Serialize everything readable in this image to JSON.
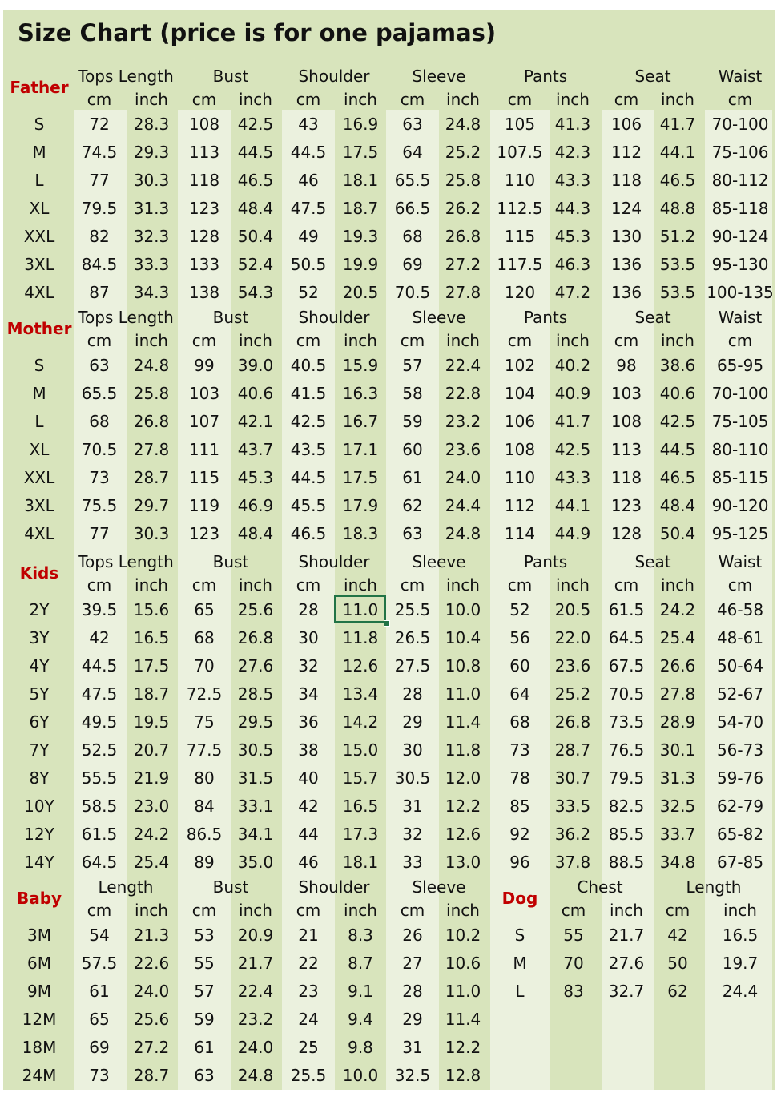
{
  "title": "Size Chart (price is for one pajamas)",
  "colors": {
    "background": "#d8e4bc",
    "stripe": "#ebf1de",
    "section_label": "#c00000",
    "selection": "#217346"
  },
  "sections": [
    {
      "label": "Father",
      "groups": [
        "Tops Length",
        "Bust",
        "Shoulder",
        "Sleeve",
        "Pants",
        "Seat",
        "Waist"
      ],
      "units": [
        "cm",
        "inch",
        "cm",
        "inch",
        "cm",
        "inch",
        "cm",
        "inch",
        "cm",
        "inch",
        "cm",
        "inch",
        "cm"
      ],
      "rows": [
        [
          "S",
          "72",
          "28.3",
          "108",
          "42.5",
          "43",
          "16.9",
          "63",
          "24.8",
          "105",
          "41.3",
          "106",
          "41.7",
          "70-100"
        ],
        [
          "M",
          "74.5",
          "29.3",
          "113",
          "44.5",
          "44.5",
          "17.5",
          "64",
          "25.2",
          "107.5",
          "42.3",
          "112",
          "44.1",
          "75-106"
        ],
        [
          "L",
          "77",
          "30.3",
          "118",
          "46.5",
          "46",
          "18.1",
          "65.5",
          "25.8",
          "110",
          "43.3",
          "118",
          "46.5",
          "80-112"
        ],
        [
          "XL",
          "79.5",
          "31.3",
          "123",
          "48.4",
          "47.5",
          "18.7",
          "66.5",
          "26.2",
          "112.5",
          "44.3",
          "124",
          "48.8",
          "85-118"
        ],
        [
          "XXL",
          "82",
          "32.3",
          "128",
          "50.4",
          "49",
          "19.3",
          "68",
          "26.8",
          "115",
          "45.3",
          "130",
          "51.2",
          "90-124"
        ],
        [
          "3XL",
          "84.5",
          "33.3",
          "133",
          "52.4",
          "50.5",
          "19.9",
          "69",
          "27.2",
          "117.5",
          "46.3",
          "136",
          "53.5",
          "95-130"
        ],
        [
          "4XL",
          "87",
          "34.3",
          "138",
          "54.3",
          "52",
          "20.5",
          "70.5",
          "27.8",
          "120",
          "47.2",
          "136",
          "53.5",
          "100-135"
        ]
      ]
    },
    {
      "label": "Mother",
      "groups": [
        "Tops Length",
        "Bust",
        "Shoulder",
        "Sleeve",
        "Pants",
        "Seat",
        "Waist"
      ],
      "units": [
        "cm",
        "inch",
        "cm",
        "inch",
        "cm",
        "inch",
        "cm",
        "inch",
        "cm",
        "inch",
        "cm",
        "inch",
        "cm"
      ],
      "rows": [
        [
          "S",
          "63",
          "24.8",
          "99",
          "39.0",
          "40.5",
          "15.9",
          "57",
          "22.4",
          "102",
          "40.2",
          "98",
          "38.6",
          "65-95"
        ],
        [
          "M",
          "65.5",
          "25.8",
          "103",
          "40.6",
          "41.5",
          "16.3",
          "58",
          "22.8",
          "104",
          "40.9",
          "103",
          "40.6",
          "70-100"
        ],
        [
          "L",
          "68",
          "26.8",
          "107",
          "42.1",
          "42.5",
          "16.7",
          "59",
          "23.2",
          "106",
          "41.7",
          "108",
          "42.5",
          "75-105"
        ],
        [
          "XL",
          "70.5",
          "27.8",
          "111",
          "43.7",
          "43.5",
          "17.1",
          "60",
          "23.6",
          "108",
          "42.5",
          "113",
          "44.5",
          "80-110"
        ],
        [
          "XXL",
          "73",
          "28.7",
          "115",
          "45.3",
          "44.5",
          "17.5",
          "61",
          "24.0",
          "110",
          "43.3",
          "118",
          "46.5",
          "85-115"
        ],
        [
          "3XL",
          "75.5",
          "29.7",
          "119",
          "46.9",
          "45.5",
          "17.9",
          "62",
          "24.4",
          "112",
          "44.1",
          "123",
          "48.4",
          "90-120"
        ],
        [
          "4XL",
          "77",
          "30.3",
          "123",
          "48.4",
          "46.5",
          "18.3",
          "63",
          "24.8",
          "114",
          "44.9",
          "128",
          "50.4",
          "95-125"
        ]
      ]
    },
    {
      "label": "Kids",
      "groups": [
        "Tops Length",
        "Bust",
        "Shoulder",
        "Sleeve",
        "Pants",
        "Seat",
        "Waist"
      ],
      "units": [
        "cm",
        "inch",
        "cm",
        "inch",
        "cm",
        "inch",
        "cm",
        "inch",
        "cm",
        "inch",
        "cm",
        "inch",
        "cm"
      ],
      "rows": [
        [
          "2Y",
          "39.5",
          "15.6",
          "65",
          "25.6",
          "28",
          "11.0",
          "25.5",
          "10.0",
          "52",
          "20.5",
          "61.5",
          "24.2",
          "46-58"
        ],
        [
          "3Y",
          "42",
          "16.5",
          "68",
          "26.8",
          "30",
          "11.8",
          "26.5",
          "10.4",
          "56",
          "22.0",
          "64.5",
          "25.4",
          "48-61"
        ],
        [
          "4Y",
          "44.5",
          "17.5",
          "70",
          "27.6",
          "32",
          "12.6",
          "27.5",
          "10.8",
          "60",
          "23.6",
          "67.5",
          "26.6",
          "50-64"
        ],
        [
          "5Y",
          "47.5",
          "18.7",
          "72.5",
          "28.5",
          "34",
          "13.4",
          "28",
          "11.0",
          "64",
          "25.2",
          "70.5",
          "27.8",
          "52-67"
        ],
        [
          "6Y",
          "49.5",
          "19.5",
          "75",
          "29.5",
          "36",
          "14.2",
          "29",
          "11.4",
          "68",
          "26.8",
          "73.5",
          "28.9",
          "54-70"
        ],
        [
          "7Y",
          "52.5",
          "20.7",
          "77.5",
          "30.5",
          "38",
          "15.0",
          "30",
          "11.8",
          "73",
          "28.7",
          "76.5",
          "30.1",
          "56-73"
        ],
        [
          "8Y",
          "55.5",
          "21.9",
          "80",
          "31.5",
          "40",
          "15.7",
          "30.5",
          "12.0",
          "78",
          "30.7",
          "79.5",
          "31.3",
          "59-76"
        ],
        [
          "10Y",
          "58.5",
          "23.0",
          "84",
          "33.1",
          "42",
          "16.5",
          "31",
          "12.2",
          "85",
          "33.5",
          "82.5",
          "32.5",
          "62-79"
        ],
        [
          "12Y",
          "61.5",
          "24.2",
          "86.5",
          "34.1",
          "44",
          "17.3",
          "32",
          "12.6",
          "92",
          "36.2",
          "85.5",
          "33.7",
          "65-82"
        ],
        [
          "14Y",
          "64.5",
          "25.4",
          "89",
          "35.0",
          "46",
          "18.1",
          "33",
          "13.0",
          "96",
          "37.8",
          "88.5",
          "34.8",
          "67-85"
        ]
      ]
    },
    {
      "label": "Baby",
      "groups": [
        "Length",
        "Bust",
        "Shoulder",
        "Sleeve"
      ],
      "units": [
        "cm",
        "inch",
        "cm",
        "inch",
        "cm",
        "inch",
        "cm",
        "inch"
      ],
      "rows": [
        [
          "3M",
          "54",
          "21.3",
          "53",
          "20.9",
          "21",
          "8.3",
          "26",
          "10.2"
        ],
        [
          "6M",
          "57.5",
          "22.6",
          "55",
          "21.7",
          "22",
          "8.7",
          "27",
          "10.6"
        ],
        [
          "9M",
          "61",
          "24.0",
          "57",
          "22.4",
          "23",
          "9.1",
          "28",
          "11.0"
        ],
        [
          "12M",
          "65",
          "25.6",
          "59",
          "23.2",
          "24",
          "9.4",
          "29",
          "11.4"
        ],
        [
          "18M",
          "69",
          "27.2",
          "61",
          "24.0",
          "25",
          "9.8",
          "31",
          "12.2"
        ],
        [
          "24M",
          "73",
          "28.7",
          "63",
          "24.8",
          "25.5",
          "10.0",
          "32.5",
          "12.8"
        ]
      ]
    },
    {
      "label": "Dog",
      "groups": [
        "Chest",
        "Length"
      ],
      "units": [
        "cm",
        "inch",
        "cm",
        "inch"
      ],
      "rows": [
        [
          "S",
          "55",
          "21.7",
          "42",
          "16.5"
        ],
        [
          "M",
          "70",
          "27.6",
          "50",
          "19.7"
        ],
        [
          "L",
          "83",
          "32.7",
          "62",
          "24.4"
        ]
      ]
    }
  ]
}
